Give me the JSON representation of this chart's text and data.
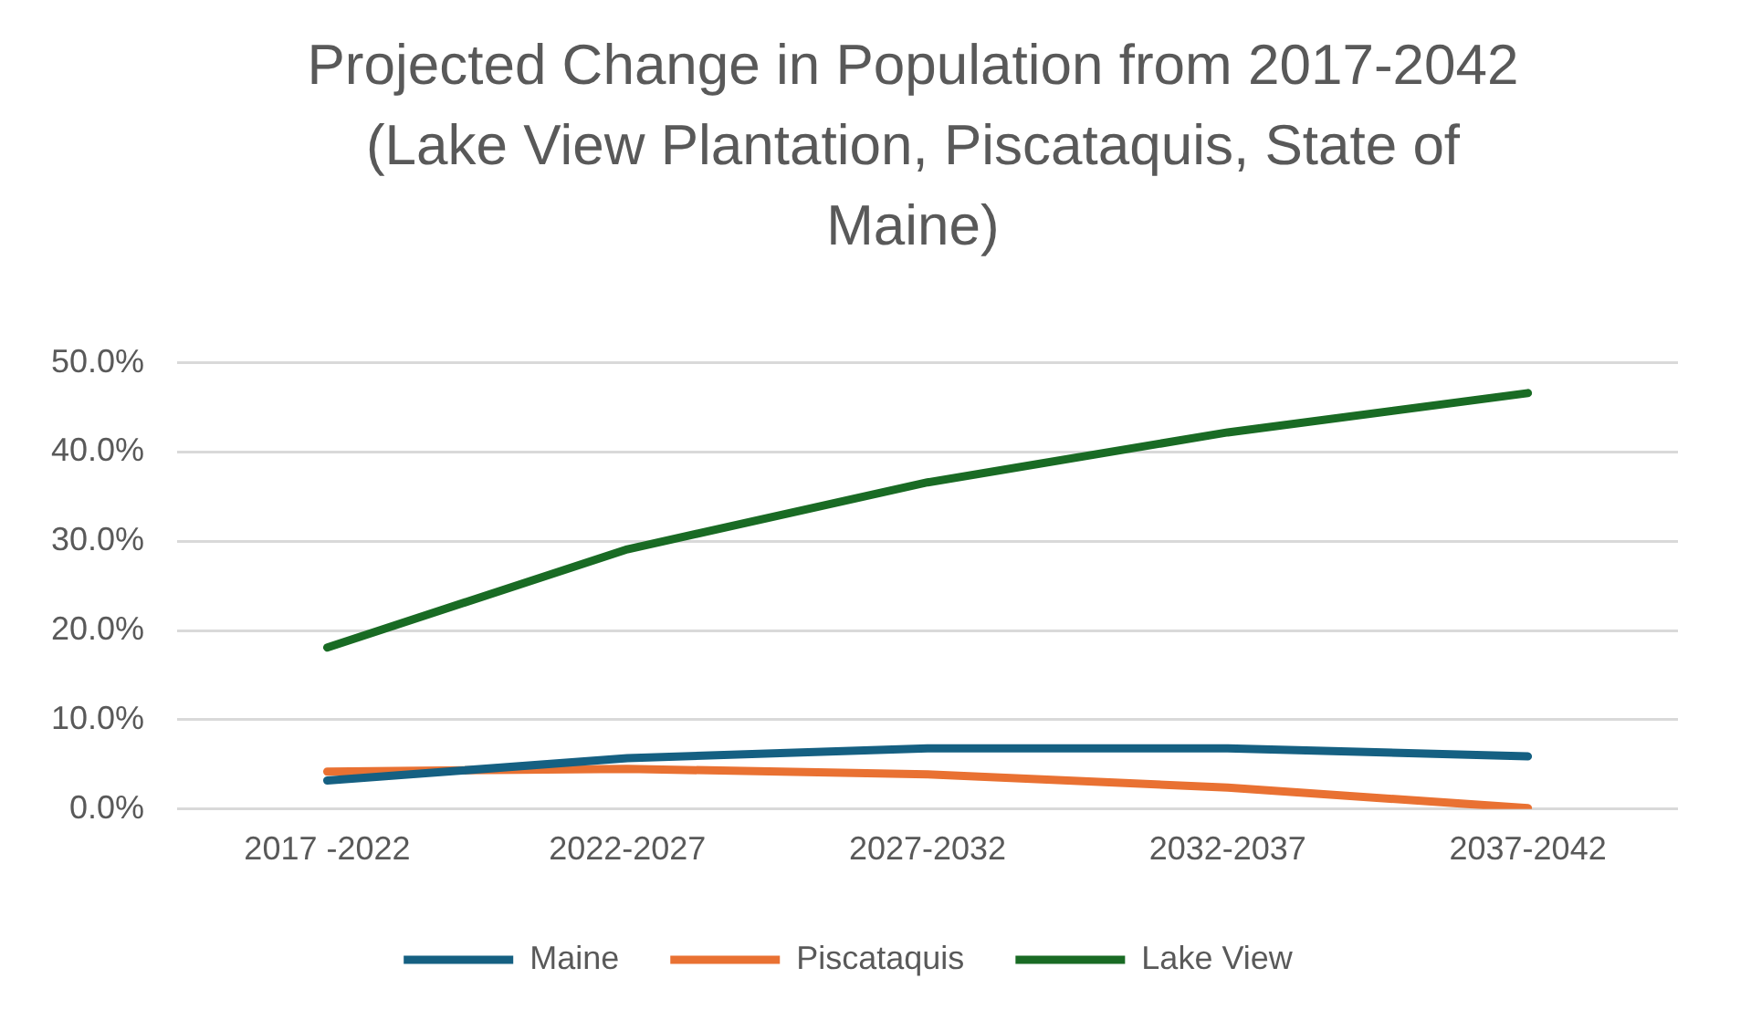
{
  "chart_data": {
    "type": "line",
    "title": "Projected Change in Population from 2017-2042 (Lake View Plantation, Piscataquis, State of Maine)",
    "categories": [
      "2017 -2022",
      "2022-2027",
      "2027-2032",
      "2032-2037",
      "2037-2042"
    ],
    "series": [
      {
        "name": "Maine",
        "color": "#156082",
        "values": [
          3.2,
          5.7,
          6.8,
          6.8,
          5.9
        ]
      },
      {
        "name": "Piscataquis",
        "color": "#e97132",
        "values": [
          4.2,
          4.5,
          3.9,
          2.4,
          0.1
        ]
      },
      {
        "name": "Lake View",
        "color": "#196b24",
        "values": [
          18.1,
          29.1,
          36.6,
          42.2,
          46.6
        ]
      }
    ],
    "ylim": [
      0,
      50
    ],
    "yticks": [
      {
        "value": 0,
        "label": "0.0%"
      },
      {
        "value": 10,
        "label": "10.0%"
      },
      {
        "value": 20,
        "label": "20.0%"
      },
      {
        "value": 30,
        "label": "30.0%"
      },
      {
        "value": 40,
        "label": "40.0%"
      },
      {
        "value": 50,
        "label": "50.0%"
      }
    ],
    "grid": "y",
    "legend": "bottom",
    "marker": "none",
    "line_style": "solid"
  }
}
